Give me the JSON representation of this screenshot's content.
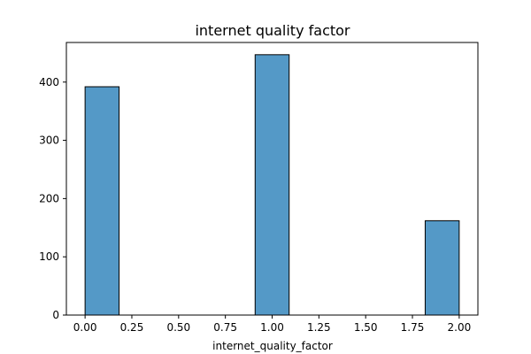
{
  "chart_data": {
    "type": "bar",
    "title": "internet quality factor",
    "xlabel": "internet_quality_factor",
    "ylabel": "",
    "xlim": [
      -0.1,
      2.1
    ],
    "ylim": [
      0,
      468
    ],
    "x_ticks": [
      0.0,
      0.25,
      0.5,
      0.75,
      1.0,
      1.25,
      1.5,
      1.75,
      2.0
    ],
    "x_tick_labels": [
      "0.00",
      "0.25",
      "0.50",
      "0.75",
      "1.00",
      "1.25",
      "1.50",
      "1.75",
      "2.00"
    ],
    "y_ticks": [
      0,
      100,
      200,
      300,
      400
    ],
    "y_tick_labels": [
      "0",
      "100",
      "200",
      "300",
      "400"
    ],
    "bins": [
      {
        "start": 0.0,
        "end": 0.1818,
        "count": 392
      },
      {
        "start": 0.1818,
        "end": 0.3636,
        "count": 0
      },
      {
        "start": 0.3636,
        "end": 0.5455,
        "count": 0
      },
      {
        "start": 0.5455,
        "end": 0.7273,
        "count": 0
      },
      {
        "start": 0.7273,
        "end": 0.9091,
        "count": 0
      },
      {
        "start": 0.9091,
        "end": 1.0909,
        "count": 447
      },
      {
        "start": 1.0909,
        "end": 1.2727,
        "count": 0
      },
      {
        "start": 1.2727,
        "end": 1.4545,
        "count": 0
      },
      {
        "start": 1.4545,
        "end": 1.6364,
        "count": 0
      },
      {
        "start": 1.6364,
        "end": 1.8182,
        "count": 0
      },
      {
        "start": 1.8182,
        "end": 2.0,
        "count": 162
      }
    ],
    "bar_color": "#5499c7",
    "bar_edge_color": "#000000",
    "grid": false
  }
}
